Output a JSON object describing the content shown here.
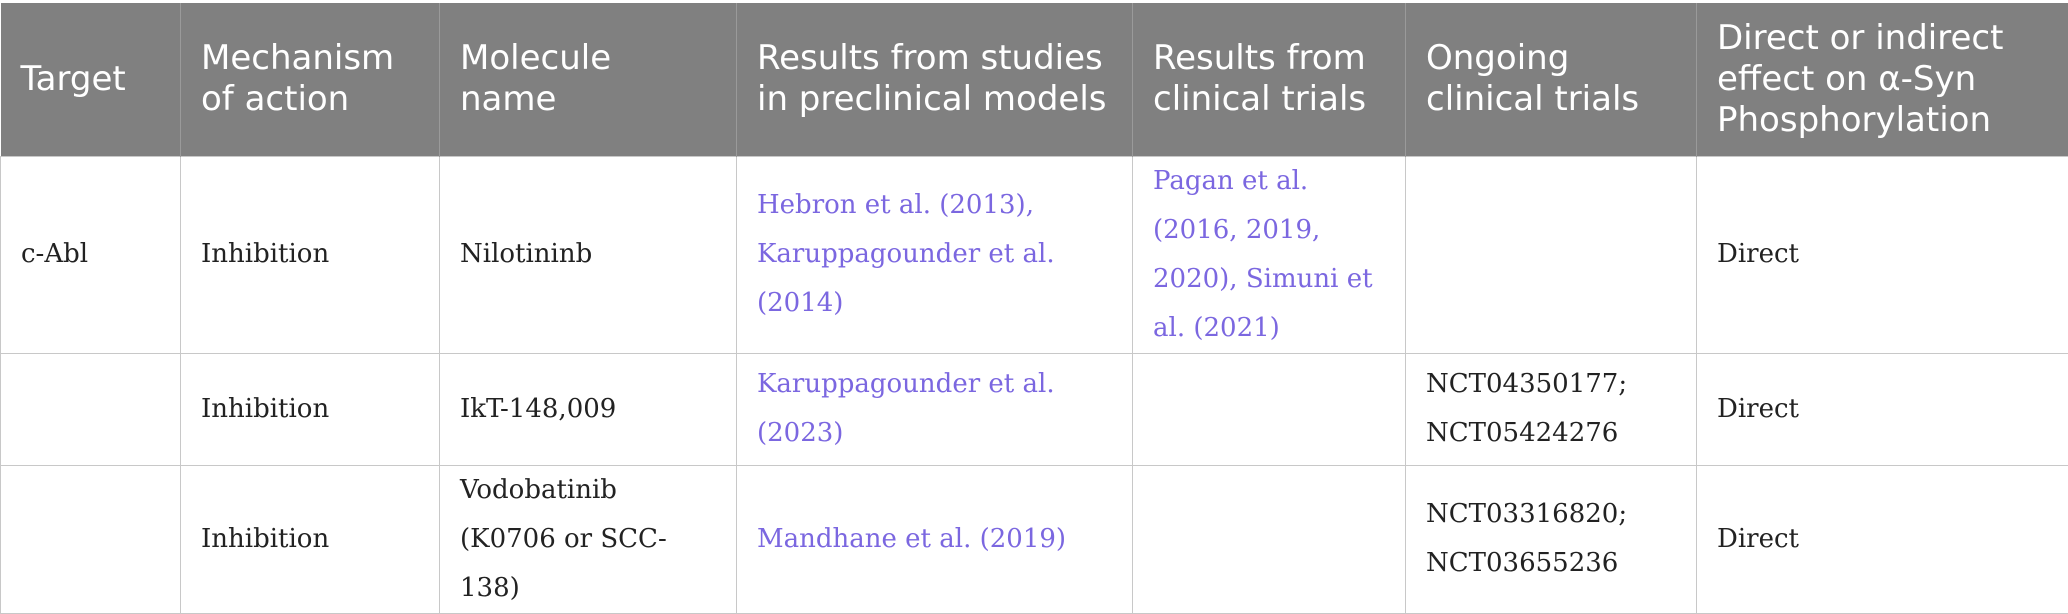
{
  "table": {
    "headers": [
      "Target",
      "Mechanism of action",
      "Molecule name",
      "Results from studies in preclinical models",
      "Results from clinical trials",
      "Ongoing clinical trials",
      "Direct or indirect effect on α-Syn Phosphorylation"
    ],
    "rows": [
      {
        "target": "c-Abl",
        "mechanism": "Inhibition",
        "molecule": "Nilotininb",
        "preclinical": "Hebron et al. (2013), Karuppagounder et al. (2014)",
        "clinical": "Pagan et al. (2016, 2019, 2020), Simuni et al. (2021)",
        "ongoing": "",
        "effect": "Direct"
      },
      {
        "target": "",
        "mechanism": "Inhibition",
        "molecule": "IkT-148,009",
        "preclinical": "Karuppagounder et al. (2023)",
        "clinical": "",
        "ongoing": "NCT04350177; NCT05424276",
        "effect": "Direct"
      },
      {
        "target": "",
        "mechanism": "Inhibition",
        "molecule": "Vodobatinib (K0706 or SCC-138)",
        "preclinical": "Mandhane et al. (2019)",
        "clinical": "",
        "ongoing": "NCT03316820; NCT03655236",
        "effect": "Direct"
      }
    ]
  },
  "colors": {
    "header_bg": "#808080",
    "header_text": "#ffffff",
    "link": "#7b67e0",
    "border": "#c8c8c8"
  }
}
